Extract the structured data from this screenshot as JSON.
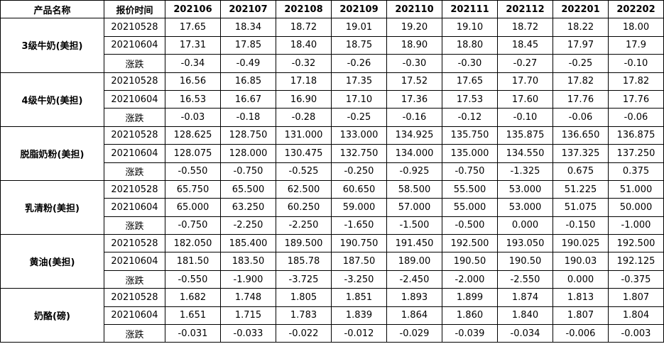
{
  "table": {
    "headers": [
      "产品名称",
      "报价时间",
      "202106",
      "202107",
      "202108",
      "202109",
      "202110",
      "202111",
      "202112",
      "202201",
      "202202"
    ],
    "groups": [
      {
        "name": "3级牛奶(美担)",
        "rows": [
          {
            "label": "20210528",
            "values": [
              "17.65",
              "18.34",
              "18.72",
              "19.01",
              "19.20",
              "19.10",
              "18.72",
              "18.22",
              "18.00"
            ]
          },
          {
            "label": "20210604",
            "values": [
              "17.31",
              "17.85",
              "18.40",
              "18.75",
              "18.90",
              "18.80",
              "18.45",
              "17.97",
              "17.9"
            ]
          },
          {
            "label": "涨跌",
            "values": [
              "-0.34",
              "-0.49",
              "-0.32",
              "-0.26",
              "-0.30",
              "-0.30",
              "-0.27",
              "-0.25",
              "-0.10"
            ]
          }
        ]
      },
      {
        "name": "4级牛奶(美担)",
        "rows": [
          {
            "label": "20210528",
            "values": [
              "16.56",
              "16.85",
              "17.18",
              "17.35",
              "17.52",
              "17.65",
              "17.70",
              "17.82",
              "17.82"
            ]
          },
          {
            "label": "20210604",
            "values": [
              "16.53",
              "16.67",
              "16.90",
              "17.10",
              "17.36",
              "17.53",
              "17.60",
              "17.76",
              "17.76"
            ]
          },
          {
            "label": "涨跌",
            "values": [
              "-0.03",
              "-0.18",
              "-0.28",
              "-0.25",
              "-0.16",
              "-0.12",
              "-0.10",
              "-0.06",
              "-0.06"
            ]
          }
        ]
      },
      {
        "name": "脱脂奶粉(美担)",
        "rows": [
          {
            "label": "20210528",
            "values": [
              "128.625",
              "128.750",
              "131.000",
              "133.000",
              "134.925",
              "135.750",
              "135.875",
              "136.650",
              "136.875"
            ]
          },
          {
            "label": "20210604",
            "values": [
              "128.075",
              "128.000",
              "130.475",
              "132.750",
              "134.000",
              "135.000",
              "134.550",
              "137.325",
              "137.250"
            ]
          },
          {
            "label": "涨跌",
            "values": [
              "-0.550",
              "-0.750",
              "-0.525",
              "-0.250",
              "-0.925",
              "-0.750",
              "-1.325",
              "0.675",
              "0.375"
            ]
          }
        ]
      },
      {
        "name": "乳清粉(美担)",
        "rows": [
          {
            "label": "20210528",
            "values": [
              "65.750",
              "65.500",
              "62.500",
              "60.650",
              "58.500",
              "55.500",
              "53.000",
              "51.225",
              "51.000"
            ]
          },
          {
            "label": "20210604",
            "values": [
              "65.000",
              "63.250",
              "60.250",
              "59.000",
              "57.000",
              "55.000",
              "53.000",
              "51.075",
              "50.000"
            ]
          },
          {
            "label": "涨跌",
            "values": [
              "-0.750",
              "-2.250",
              "-2.250",
              "-1.650",
              "-1.500",
              "-0.500",
              "0.000",
              "-0.150",
              "-1.000"
            ]
          }
        ]
      },
      {
        "name": "黄油(美担)",
        "rows": [
          {
            "label": "20210528",
            "values": [
              "182.050",
              "185.400",
              "189.500",
              "190.750",
              "191.450",
              "192.500",
              "193.050",
              "190.025",
              "192.500"
            ]
          },
          {
            "label": "20210604",
            "values": [
              "181.50",
              "183.50",
              "185.78",
              "187.50",
              "189.00",
              "190.50",
              "190.50",
              "190.03",
              "192.125"
            ]
          },
          {
            "label": "涨跌",
            "values": [
              "-0.550",
              "-1.900",
              "-3.725",
              "-3.250",
              "-2.450",
              "-2.000",
              "-2.550",
              "0.000",
              "-0.375"
            ]
          }
        ]
      },
      {
        "name": "奶酪(磅)",
        "rows": [
          {
            "label": "20210528",
            "values": [
              "1.682",
              "1.748",
              "1.805",
              "1.851",
              "1.893",
              "1.899",
              "1.874",
              "1.813",
              "1.807"
            ]
          },
          {
            "label": "20210604",
            "values": [
              "1.651",
              "1.715",
              "1.783",
              "1.839",
              "1.864",
              "1.860",
              "1.840",
              "1.807",
              "1.804"
            ]
          },
          {
            "label": "涨跌",
            "values": [
              "-0.031",
              "-0.033",
              "-0.022",
              "-0.012",
              "-0.029",
              "-0.039",
              "-0.034",
              "-0.006",
              "-0.003"
            ]
          }
        ]
      }
    ]
  }
}
